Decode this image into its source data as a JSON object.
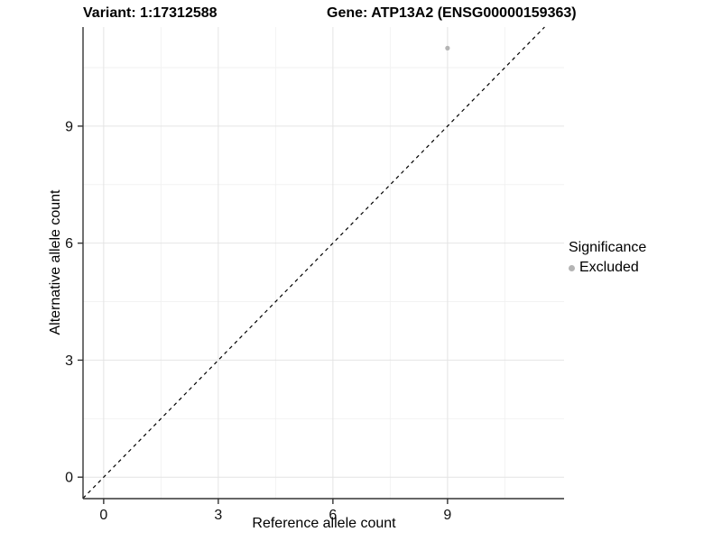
{
  "header": {
    "title_left": "Variant: 1:17312588",
    "title_right": "Gene: ATP13A2 (ENSG00000159363)"
  },
  "chart_data": {
    "type": "scatter",
    "title": "Variant: 1:17312588  /  Gene: ATP13A2 (ENSG00000159363)",
    "xlabel": "Reference allele count",
    "ylabel": "Alternative allele count",
    "xlim": [
      -0.54,
      12.05
    ],
    "ylim": [
      -0.55,
      11.54
    ],
    "x_major_ticks": [
      0,
      3,
      6,
      9
    ],
    "y_major_ticks": [
      0,
      3,
      6,
      9
    ],
    "x_minor_ticks": [
      1.5,
      4.5,
      7.5,
      10.5
    ],
    "y_minor_ticks": [
      1.5,
      4.5,
      7.5,
      10.5
    ],
    "grid": true,
    "series": [
      {
        "name": "Excluded",
        "points": [
          {
            "x": 9,
            "y": 11
          }
        ],
        "color": "#b4b4b4",
        "point_radius": 2.6
      }
    ],
    "identity_line": {
      "equation": "y = x",
      "style": "dashed",
      "color": "#000000"
    },
    "legend": {
      "title": "Significance",
      "position": "right",
      "items": [
        {
          "label": "Excluded",
          "color": "#b4b4b4"
        }
      ]
    },
    "colors": {
      "background": "#ffffff",
      "grid_major": "#e4e4e4",
      "grid_minor": "#f2f2f2",
      "axis_line": "#333333",
      "tick_text": "#111111"
    }
  }
}
